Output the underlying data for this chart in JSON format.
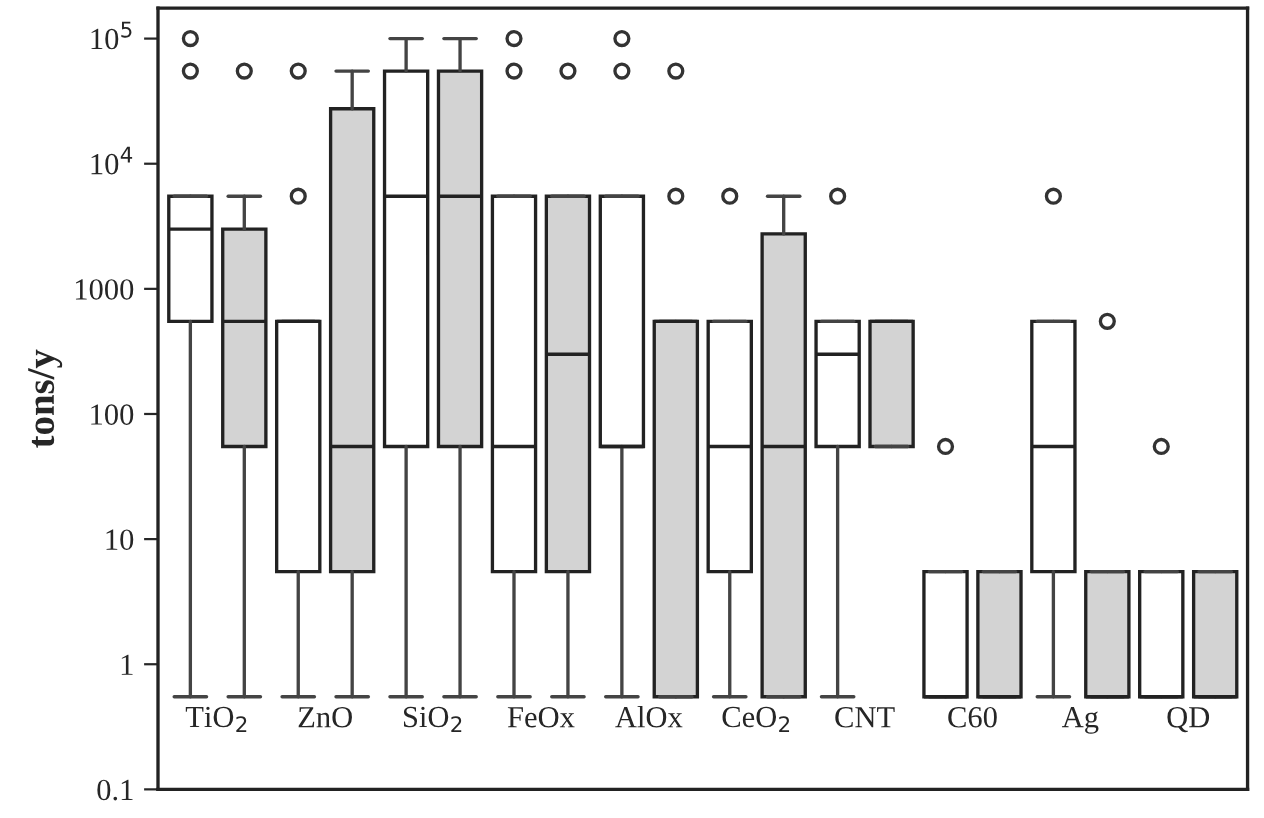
{
  "chart_data": {
    "type": "box",
    "ylabel": "tons/y",
    "log": true,
    "categories": [
      "TiO$_{2}$",
      "ZnO",
      "SiO$_{2}$",
      "FeOx",
      "AlOx",
      "CeO$_{2}$",
      "CNT",
      "C60",
      "Ag",
      "QD"
    ],
    "ylim": [
      0.1,
      175000
    ],
    "yticks": [
      0.1,
      1,
      10,
      100,
      1000,
      {
        "value": 10000,
        "label": "10$^{4}$"
      },
      {
        "value": 100000,
        "label": "10$^{5}$"
      }
    ],
    "series": [
      {
        "color": "#ffffff",
        "boxes": [
          {
            "low": 0.55,
            "q1": 550,
            "median": 3000,
            "q3": 5500,
            "high": 5500,
            "outliers": [
              55000,
              100000
            ]
          },
          {
            "low": 0.55,
            "q1": 5.5,
            "median": 550,
            "q3": 550,
            "high": 550,
            "outliers": [
              5500,
              55000
            ]
          },
          {
            "low": 0.55,
            "q1": 55,
            "median": 5500,
            "q3": 55000,
            "high": 100000
          },
          {
            "low": 0.55,
            "q1": 5.5,
            "median": 55,
            "q3": 5500,
            "high": 5500,
            "outliers": [
              55000,
              100000
            ]
          },
          {
            "low": 0.55,
            "q1": 55,
            "median": 55,
            "q3": 5500,
            "high": 5500,
            "outliers": [
              55000,
              100000
            ]
          },
          {
            "low": 0.55,
            "q1": 5.5,
            "median": 55,
            "q3": 550,
            "high": 550,
            "outliers": [
              5500
            ]
          },
          {
            "low": 0.55,
            "q1": 55,
            "median": 300,
            "q3": 550,
            "high": 550,
            "outliers": [
              5500
            ]
          },
          {
            "low": 0.55,
            "q1": 0.55,
            "median": 0.55,
            "q3": 5.5,
            "high": 5.5,
            "outliers": [
              55
            ]
          },
          {
            "low": 0.55,
            "q1": 5.5,
            "median": 55,
            "q3": 550,
            "high": 550,
            "outliers": [
              5500
            ]
          },
          {
            "low": 0.55,
            "q1": 0.55,
            "median": 0.55,
            "q3": 5.5,
            "high": 5.5,
            "outliers": [
              55
            ]
          }
        ]
      },
      {
        "color": "#d3d3d3",
        "boxes": [
          {
            "low": 0.55,
            "q1": 55,
            "median": 550,
            "q3": 3000,
            "high": 5500,
            "outliers": [
              55000
            ]
          },
          {
            "low": 0.55,
            "q1": 5.5,
            "median": 55,
            "q3": 27500,
            "high": 55000
          },
          {
            "low": 0.55,
            "q1": 55,
            "median": 5500,
            "q3": 55000,
            "high": 100000
          },
          {
            "low": 0.55,
            "q1": 5.5,
            "median": 300,
            "q3": 5500,
            "high": 5500,
            "outliers": [
              55000
            ]
          },
          {
            "low": 0.55,
            "q1": 0.55,
            "median": 550,
            "q3": 550,
            "high": 550,
            "outliers": [
              5500,
              55000
            ]
          },
          {
            "low": 0.55,
            "q1": 0.55,
            "median": 55,
            "q3": 2750,
            "high": 5500
          },
          {
            "low": 55,
            "q1": 55,
            "median": 550,
            "q3": 550,
            "high": 550
          },
          {
            "low": 0.55,
            "q1": 0.55,
            "median": 0.55,
            "q3": 5.5,
            "high": 5.5
          },
          {
            "low": 0.55,
            "q1": 0.55,
            "median": 0.55,
            "q3": 5.5,
            "high": 5.5,
            "outliers": [
              550
            ]
          },
          {
            "low": 0.55,
            "q1": 0.55,
            "median": 0.55,
            "q3": 5.5,
            "high": 5.5
          }
        ]
      }
    ]
  }
}
